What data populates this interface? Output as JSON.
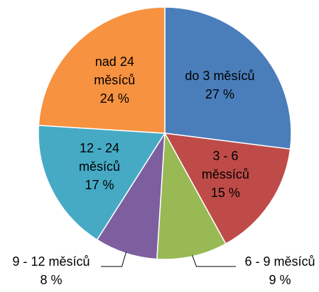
{
  "chart_data": {
    "type": "pie",
    "categories": [
      "do 3 měsíců",
      "3 - 6 měssíců",
      "6 - 9 měsíců",
      "9 - 12 měsíců",
      "12 - 24 měsíců",
      "nad 24 měsíců"
    ],
    "values": [
      27,
      15,
      9,
      8,
      17,
      24
    ],
    "value_labels": [
      "27 %",
      "15 %",
      "9 %",
      "8 %",
      "17 %",
      "24 %"
    ],
    "colors": [
      "#4a7ebb",
      "#be4b48",
      "#98b954",
      "#7d5fa0",
      "#46aac5",
      "#f69240"
    ]
  }
}
